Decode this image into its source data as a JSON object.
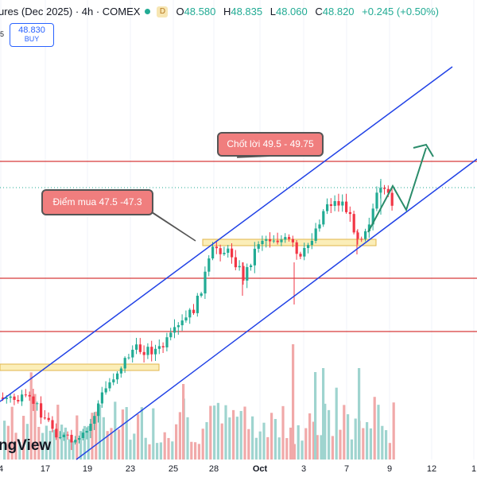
{
  "header": {
    "title": "ures (Dec 2025) · 4h · COMEX",
    "badge": "D",
    "open_label": "O",
    "open_value": "48.580",
    "high_label": "H",
    "high_value": "48.835",
    "low_label": "L",
    "low_value": "48.060",
    "close_label": "C",
    "close_value": "48.820",
    "change": "+0.245 (+0.50%)",
    "up_color": "#22ab94"
  },
  "buy_button": {
    "price": "48.830",
    "label": "BUY"
  },
  "side_fragment": "5",
  "watermark": "ngView",
  "annotations": {
    "take_profit": "Chốt lời 49.5 - 49.75",
    "entry": "Điểm mua 47.5 -47.3"
  },
  "x_axis": {
    "labels": [
      "4",
      "17",
      "19",
      "23",
      "25",
      "28",
      "Oct",
      "3",
      "7",
      "9",
      "12",
      "1"
    ]
  },
  "colors": {
    "up": "#22ab94",
    "down": "#f23645",
    "vol_up": "#9fd4cf",
    "vol_down": "#f1a9a9",
    "channel": "#2142e6",
    "level": "#d63a3a",
    "zone_fill": "#fbeeb8",
    "zone_border": "#e0b64b",
    "projection": "#2a8c6a"
  },
  "chart_data": {
    "type": "candlestick",
    "symbol_fragment": "ures (Dec 2025)",
    "timeframe": "4h",
    "exchange": "COMEX",
    "last_price": 48.82,
    "price_range_visible": [
      44.5,
      51.7
    ],
    "horizontal_levels": [
      49.75,
      47.6,
      46.2
    ],
    "zones": [
      {
        "from": 47.3,
        "to": 47.4,
        "label": "entry zone"
      },
      {
        "from": 45.2,
        "to": 45.3,
        "label": "support zone"
      }
    ],
    "channel": {
      "type": "ascending",
      "lines": 2
    },
    "projection": "up-down-up arrow toward ~50.0"
  }
}
